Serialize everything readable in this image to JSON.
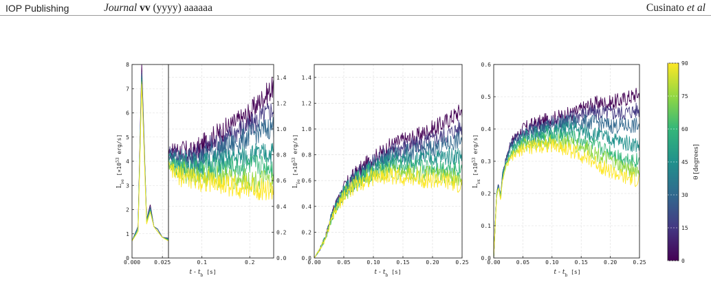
{
  "header": {
    "publisher": "IOP Publishing",
    "journal_italic": "Journal",
    "journal_bold": "vv",
    "journal_rest": "(yyyy) aaaaaa",
    "author": "Cusinato",
    "author_suffix": "et al"
  },
  "colors": {
    "low_theta": "#440154",
    "high_theta": "#fde725",
    "grid": "#d9d9d9",
    "frame": "#222222"
  },
  "chart_data": [
    {
      "type": "line",
      "panel": "nu_e",
      "xlabel": "t - t_b [s]",
      "ylabel": "L_νe [×10^53 erg/s]",
      "left_axis": {
        "xlim": [
          0,
          0.03
        ],
        "xticks": [
          "0.000",
          "0.025"
        ],
        "ylim": [
          0,
          8
        ],
        "yticks": [
          "0",
          "1",
          "2",
          "3",
          "4",
          "5",
          "6",
          "7",
          "8"
        ]
      },
      "right_axis": {
        "xlim": [
          0.03,
          0.25
        ],
        "xticks": [
          "0.1",
          "0.2"
        ],
        "ylim": [
          0,
          1.5
        ],
        "yticks": [
          "0.0",
          "0.2",
          "0.4",
          "0.6",
          "0.8",
          "1.0",
          "1.2",
          "1.4"
        ]
      },
      "series": [
        {
          "theta": 0,
          "x": [
            0,
            0.005,
            0.008,
            0.012,
            0.015,
            0.018,
            0.021,
            0.025,
            0.03,
            0.05,
            0.08,
            0.1,
            0.12,
            0.15,
            0.18,
            0.2,
            0.22,
            0.25
          ],
          "y": [
            0.7,
            1.3,
            8.0,
            1.6,
            2.2,
            1.3,
            1.2,
            0.85,
            0.82,
            0.84,
            0.81,
            0.87,
            0.93,
            1.0,
            1.07,
            1.12,
            1.21,
            1.33
          ]
        },
        {
          "theta": 15,
          "x": [
            0,
            0.005,
            0.008,
            0.012,
            0.015,
            0.018,
            0.021,
            0.025,
            0.03,
            0.05,
            0.08,
            0.1,
            0.12,
            0.15,
            0.18,
            0.2,
            0.22,
            0.25
          ],
          "y": [
            0.7,
            1.3,
            7.7,
            1.6,
            2.1,
            1.3,
            1.2,
            0.85,
            0.82,
            0.8,
            0.78,
            0.83,
            0.88,
            0.93,
            1.0,
            1.02,
            1.08,
            1.16
          ]
        },
        {
          "theta": 30,
          "x": [
            0,
            0.005,
            0.008,
            0.012,
            0.015,
            0.018,
            0.021,
            0.025,
            0.03,
            0.05,
            0.08,
            0.1,
            0.12,
            0.15,
            0.18,
            0.2,
            0.22,
            0.25
          ],
          "y": [
            0.7,
            1.3,
            7.6,
            1.6,
            2.1,
            1.3,
            1.2,
            0.85,
            0.8,
            0.77,
            0.76,
            0.78,
            0.82,
            0.86,
            0.9,
            0.95,
            0.98,
            1.02
          ]
        },
        {
          "theta": 45,
          "x": [
            0,
            0.005,
            0.008,
            0.012,
            0.015,
            0.018,
            0.021,
            0.025,
            0.03,
            0.05,
            0.08,
            0.1,
            0.12,
            0.15,
            0.18,
            0.2,
            0.22,
            0.25
          ],
          "y": [
            0.7,
            1.2,
            7.5,
            1.5,
            2.0,
            1.3,
            1.1,
            0.85,
            0.78,
            0.73,
            0.72,
            0.73,
            0.75,
            0.76,
            0.78,
            0.8,
            0.8,
            0.82
          ]
        },
        {
          "theta": 60,
          "x": [
            0,
            0.005,
            0.008,
            0.012,
            0.015,
            0.018,
            0.021,
            0.025,
            0.03,
            0.05,
            0.08,
            0.1,
            0.12,
            0.15,
            0.18,
            0.2,
            0.22,
            0.25
          ],
          "y": [
            0.7,
            1.2,
            7.4,
            1.5,
            2.0,
            1.3,
            1.1,
            0.85,
            0.75,
            0.7,
            0.68,
            0.68,
            0.69,
            0.7,
            0.7,
            0.71,
            0.72,
            0.7
          ]
        },
        {
          "theta": 75,
          "x": [
            0,
            0.005,
            0.008,
            0.012,
            0.015,
            0.018,
            0.021,
            0.025,
            0.03,
            0.05,
            0.08,
            0.1,
            0.12,
            0.15,
            0.18,
            0.2,
            0.22,
            0.25
          ],
          "y": [
            0.7,
            1.1,
            7.3,
            1.5,
            1.9,
            1.3,
            1.1,
            0.85,
            0.72,
            0.67,
            0.65,
            0.64,
            0.63,
            0.62,
            0.61,
            0.6,
            0.6,
            0.58
          ]
        },
        {
          "theta": 90,
          "x": [
            0,
            0.005,
            0.008,
            0.012,
            0.015,
            0.018,
            0.021,
            0.025,
            0.03,
            0.05,
            0.08,
            0.1,
            0.12,
            0.15,
            0.18,
            0.2,
            0.22,
            0.25
          ],
          "y": [
            0.7,
            1.1,
            7.2,
            1.4,
            1.9,
            1.3,
            1.1,
            0.85,
            0.7,
            0.64,
            0.62,
            0.6,
            0.59,
            0.57,
            0.55,
            0.55,
            0.54,
            0.52
          ]
        }
      ]
    },
    {
      "type": "line",
      "panel": "anti_nu_e",
      "xlabel": "t - t_b [s]",
      "ylabel": "L_ν̄e [×10^53 erg/s]",
      "xlim": [
        0,
        0.25
      ],
      "xticks": [
        "0.00",
        "0.05",
        "0.10",
        "0.15",
        "0.20",
        "0.25"
      ],
      "ylim": [
        0,
        1.5
      ],
      "yticks": [
        "0.0",
        "0.2",
        "0.4",
        "0.6",
        "0.8",
        "1.0",
        "1.2",
        "1.4"
      ],
      "series": [
        {
          "theta": 0,
          "x": [
            0,
            0.01,
            0.02,
            0.03,
            0.04,
            0.05,
            0.07,
            0.09,
            0.11,
            0.13,
            0.15,
            0.17,
            0.19,
            0.21,
            0.23,
            0.25
          ],
          "y": [
            0.0,
            0.07,
            0.18,
            0.34,
            0.45,
            0.54,
            0.65,
            0.73,
            0.8,
            0.87,
            0.91,
            0.93,
            0.98,
            1.02,
            1.08,
            1.15
          ]
        },
        {
          "theta": 15,
          "x": [
            0,
            0.01,
            0.02,
            0.03,
            0.04,
            0.05,
            0.07,
            0.09,
            0.11,
            0.13,
            0.15,
            0.17,
            0.19,
            0.21,
            0.23,
            0.25
          ],
          "y": [
            0.0,
            0.07,
            0.18,
            0.34,
            0.45,
            0.53,
            0.64,
            0.71,
            0.78,
            0.83,
            0.86,
            0.87,
            0.9,
            0.93,
            0.97,
            1.02
          ]
        },
        {
          "theta": 30,
          "x": [
            0,
            0.01,
            0.02,
            0.03,
            0.04,
            0.05,
            0.07,
            0.09,
            0.11,
            0.13,
            0.15,
            0.17,
            0.19,
            0.21,
            0.23,
            0.25
          ],
          "y": [
            0.0,
            0.07,
            0.18,
            0.33,
            0.44,
            0.52,
            0.62,
            0.69,
            0.75,
            0.79,
            0.81,
            0.82,
            0.84,
            0.86,
            0.89,
            0.92
          ]
        },
        {
          "theta": 45,
          "x": [
            0,
            0.01,
            0.02,
            0.03,
            0.04,
            0.05,
            0.07,
            0.09,
            0.11,
            0.13,
            0.15,
            0.17,
            0.19,
            0.21,
            0.23,
            0.25
          ],
          "y": [
            0.0,
            0.07,
            0.17,
            0.33,
            0.43,
            0.51,
            0.61,
            0.67,
            0.72,
            0.75,
            0.76,
            0.76,
            0.77,
            0.78,
            0.79,
            0.8
          ]
        },
        {
          "theta": 60,
          "x": [
            0,
            0.01,
            0.02,
            0.03,
            0.04,
            0.05,
            0.07,
            0.09,
            0.11,
            0.13,
            0.15,
            0.17,
            0.19,
            0.21,
            0.23,
            0.25
          ],
          "y": [
            0.0,
            0.07,
            0.17,
            0.32,
            0.42,
            0.5,
            0.6,
            0.65,
            0.69,
            0.71,
            0.71,
            0.7,
            0.7,
            0.7,
            0.7,
            0.69
          ]
        },
        {
          "theta": 75,
          "x": [
            0,
            0.01,
            0.02,
            0.03,
            0.04,
            0.05,
            0.07,
            0.09,
            0.11,
            0.13,
            0.15,
            0.17,
            0.19,
            0.21,
            0.23,
            0.25
          ],
          "y": [
            0.0,
            0.07,
            0.17,
            0.32,
            0.41,
            0.49,
            0.58,
            0.63,
            0.66,
            0.67,
            0.67,
            0.66,
            0.65,
            0.64,
            0.63,
            0.61
          ]
        },
        {
          "theta": 90,
          "x": [
            0,
            0.01,
            0.02,
            0.03,
            0.04,
            0.05,
            0.07,
            0.09,
            0.11,
            0.13,
            0.15,
            0.17,
            0.19,
            0.21,
            0.23,
            0.25
          ],
          "y": [
            0.0,
            0.07,
            0.16,
            0.31,
            0.4,
            0.48,
            0.57,
            0.61,
            0.63,
            0.64,
            0.63,
            0.62,
            0.61,
            0.6,
            0.58,
            0.56
          ]
        }
      ]
    },
    {
      "type": "line",
      "panel": "nu_x",
      "xlabel": "t - t_b [s]",
      "ylabel": "L_νx [×10^53 erg/s]",
      "xlim": [
        0,
        0.25
      ],
      "xticks": [
        "0.00",
        "0.05",
        "0.10",
        "0.15",
        "0.20",
        "0.25"
      ],
      "ylim": [
        0,
        0.6
      ],
      "yticks": [
        "0.0",
        "0.1",
        "0.2",
        "0.3",
        "0.4",
        "0.5",
        "0.6"
      ],
      "series": [
        {
          "theta": 0,
          "x": [
            0,
            0.005,
            0.008,
            0.012,
            0.015,
            0.02,
            0.03,
            0.05,
            0.08,
            0.1,
            0.12,
            0.14,
            0.16,
            0.18,
            0.2,
            0.22,
            0.25
          ],
          "y": [
            0.0,
            0.2,
            0.23,
            0.19,
            0.26,
            0.3,
            0.36,
            0.4,
            0.42,
            0.43,
            0.44,
            0.45,
            0.47,
            0.48,
            0.48,
            0.49,
            0.51
          ]
        },
        {
          "theta": 15,
          "x": [
            0,
            0.005,
            0.008,
            0.012,
            0.015,
            0.02,
            0.03,
            0.05,
            0.08,
            0.1,
            0.12,
            0.14,
            0.16,
            0.18,
            0.2,
            0.22,
            0.25
          ],
          "y": [
            0.0,
            0.2,
            0.23,
            0.19,
            0.26,
            0.3,
            0.36,
            0.39,
            0.41,
            0.42,
            0.43,
            0.44,
            0.45,
            0.45,
            0.45,
            0.45,
            0.46
          ]
        },
        {
          "theta": 30,
          "x": [
            0,
            0.005,
            0.008,
            0.012,
            0.015,
            0.02,
            0.03,
            0.05,
            0.08,
            0.1,
            0.12,
            0.14,
            0.16,
            0.18,
            0.2,
            0.22,
            0.25
          ],
          "y": [
            0.0,
            0.2,
            0.23,
            0.19,
            0.26,
            0.3,
            0.35,
            0.38,
            0.4,
            0.41,
            0.42,
            0.42,
            0.42,
            0.42,
            0.41,
            0.41,
            0.41
          ]
        },
        {
          "theta": 45,
          "x": [
            0,
            0.005,
            0.008,
            0.012,
            0.015,
            0.02,
            0.03,
            0.05,
            0.08,
            0.1,
            0.12,
            0.14,
            0.16,
            0.18,
            0.2,
            0.22,
            0.25
          ],
          "y": [
            0.0,
            0.2,
            0.22,
            0.19,
            0.25,
            0.29,
            0.34,
            0.37,
            0.39,
            0.39,
            0.4,
            0.4,
            0.39,
            0.38,
            0.37,
            0.36,
            0.35
          ]
        },
        {
          "theta": 60,
          "x": [
            0,
            0.005,
            0.008,
            0.012,
            0.015,
            0.02,
            0.03,
            0.05,
            0.08,
            0.1,
            0.12,
            0.14,
            0.16,
            0.18,
            0.2,
            0.22,
            0.25
          ],
          "y": [
            0.0,
            0.2,
            0.22,
            0.19,
            0.25,
            0.29,
            0.33,
            0.36,
            0.37,
            0.38,
            0.38,
            0.37,
            0.36,
            0.34,
            0.33,
            0.31,
            0.3
          ]
        },
        {
          "theta": 75,
          "x": [
            0,
            0.005,
            0.008,
            0.012,
            0.015,
            0.02,
            0.03,
            0.05,
            0.08,
            0.1,
            0.12,
            0.14,
            0.16,
            0.18,
            0.2,
            0.22,
            0.25
          ],
          "y": [
            0.0,
            0.19,
            0.22,
            0.18,
            0.24,
            0.28,
            0.32,
            0.35,
            0.36,
            0.36,
            0.36,
            0.35,
            0.34,
            0.32,
            0.3,
            0.28,
            0.27
          ]
        },
        {
          "theta": 90,
          "x": [
            0,
            0.005,
            0.008,
            0.012,
            0.015,
            0.02,
            0.03,
            0.05,
            0.08,
            0.1,
            0.12,
            0.14,
            0.16,
            0.18,
            0.2,
            0.22,
            0.25
          ],
          "y": [
            0.0,
            0.19,
            0.22,
            0.18,
            0.24,
            0.28,
            0.31,
            0.34,
            0.35,
            0.35,
            0.34,
            0.33,
            0.31,
            0.29,
            0.27,
            0.25,
            0.24
          ]
        }
      ]
    }
  ],
  "colorbar": {
    "label": "θ [degrees]",
    "ticks": [
      "0",
      "15",
      "30",
      "45",
      "60",
      "75",
      "90"
    ],
    "range": [
      0,
      90
    ]
  }
}
